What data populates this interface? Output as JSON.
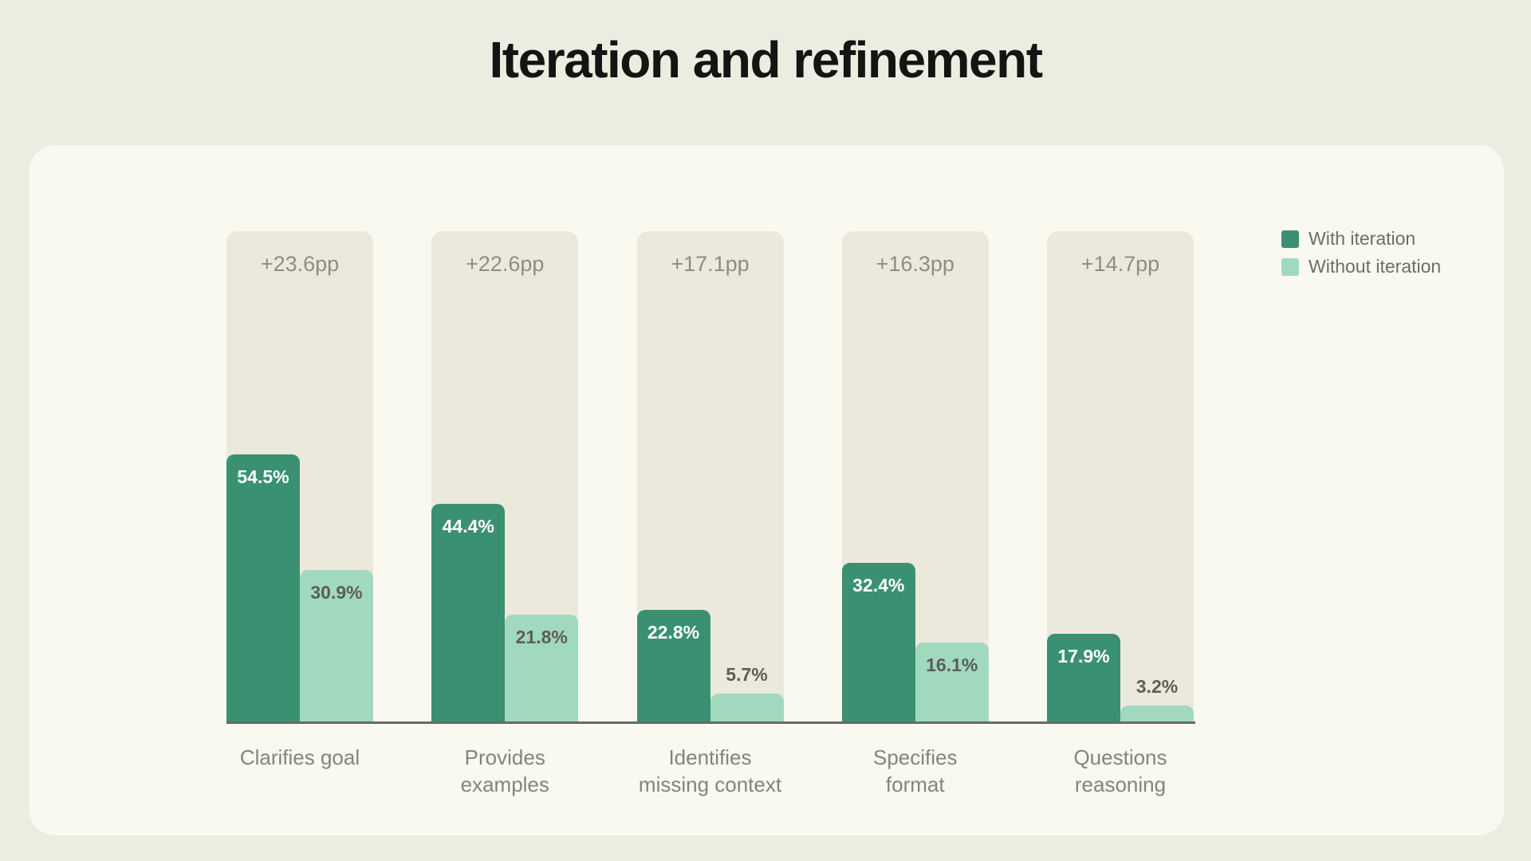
{
  "title": "Iteration and refinement",
  "chart_data": {
    "type": "bar",
    "title": "Iteration and refinement",
    "categories": [
      "Clarifies goal",
      "Provides\nexamples",
      "Identifies\nmissing context",
      "Specifies\nformat",
      "Questions\nreasoning"
    ],
    "series": [
      {
        "name": "With iteration",
        "color": "#3A9172",
        "label_color": "#FFFFFF",
        "values": [
          54.5,
          44.4,
          22.8,
          32.4,
          17.9
        ]
      },
      {
        "name": "Without iteration",
        "color": "#A0D9BE",
        "label_color": "#5D5D56",
        "values": [
          30.9,
          21.8,
          5.7,
          16.1,
          3.2
        ]
      }
    ],
    "bar_deltas": [
      "+23.6pp",
      "+22.6pp",
      "+17.1pp",
      "+16.3pp",
      "+14.7pp"
    ],
    "value_suffix": "%",
    "ylim": [
      0,
      100
    ],
    "grid": false,
    "legend_position": "top-right",
    "colors": {
      "page_bg": "#EDECE1",
      "card_bg": "#FAF9F0",
      "column_bg": "#EAE9DC",
      "axis_line": "#6B6A64",
      "delta_text": "#8E8D84",
      "category_text": "#85847B",
      "legend_text": "#6E6D66",
      "title_text": "#141413",
      "outside_value_text": "#5D5D56"
    }
  }
}
